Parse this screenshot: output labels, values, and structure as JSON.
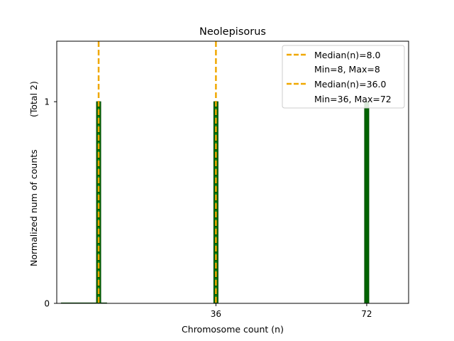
{
  "chart_data": {
    "type": "bar",
    "title": "Neolepisorus",
    "xlabel": "Chromosome count (n)",
    "ylabel": "Normalized num of counts",
    "ylabel_total": "(Total 2)",
    "xlim": [
      -2,
      82
    ],
    "ylim": [
      0,
      1.3
    ],
    "xticks": [
      36,
      72
    ],
    "yticks": [
      0,
      1
    ],
    "bars": [
      {
        "x": 8,
        "value": 1,
        "dotted": true
      },
      {
        "x": 36,
        "value": 1,
        "dotted": true
      },
      {
        "x": 72,
        "value": 1,
        "dotted": false
      }
    ],
    "stub_bar": {
      "x_start": -1,
      "x_end": 10
    },
    "median_lines": [
      {
        "x": 8,
        "label": "Median(n)=8.0",
        "range_label": "Min=8, Max=8"
      },
      {
        "x": 36,
        "label": "Median(n)=36.0",
        "range_label": "Min=36, Max=72"
      }
    ],
    "colors": {
      "bar_fill": "#006400",
      "bar_edge": "#004d00",
      "bar_dots": "#2aa02a",
      "median": "#f0a800",
      "axis": "#000000"
    },
    "legend_position": "top-right"
  }
}
